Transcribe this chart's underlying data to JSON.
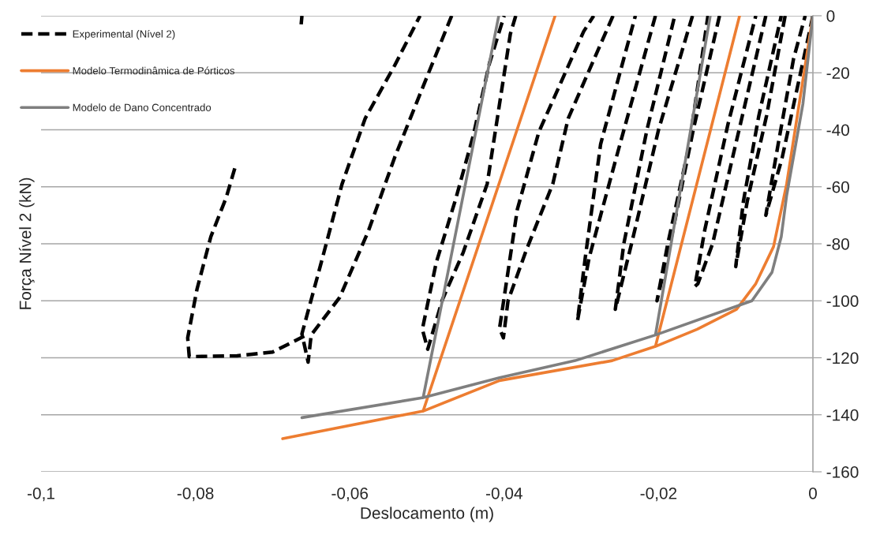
{
  "chart_data": {
    "type": "line",
    "xlabel": "Deslocamento (m)",
    "ylabel": "Força Nível 2 (kN)",
    "xlim": [
      -0.1,
      0
    ],
    "ylim": [
      -160,
      0
    ],
    "xticks": [
      {
        "value": -0.1,
        "label": "-0,1"
      },
      {
        "value": -0.08,
        "label": "-0,08"
      },
      {
        "value": -0.06,
        "label": "-0,06"
      },
      {
        "value": -0.04,
        "label": "-0,04"
      },
      {
        "value": -0.02,
        "label": "-0,02"
      },
      0
    ],
    "yticks": [
      -160,
      -140,
      -120,
      -100,
      -80,
      -60,
      -40,
      -20,
      0
    ],
    "grid": "y",
    "legend": "top left",
    "series": [
      {
        "name": "Experimental (Nível 2)",
        "color": "#000000",
        "line_style": "dashed",
        "x": [
          0,
          -0.002,
          -0.004,
          -0.0061,
          -0.0045,
          -0.0025,
          -0.001,
          null,
          -0.0036,
          -0.006,
          -0.0085,
          -0.01,
          -0.009,
          -0.007,
          -0.0041,
          null,
          -0.0061,
          -0.01,
          -0.013,
          -0.0149,
          -0.0153,
          -0.014,
          -0.011,
          -0.0074,
          null,
          -0.0121,
          -0.0155,
          -0.0185,
          -0.0202,
          -0.0188,
          -0.016,
          -0.0136,
          null,
          -0.0156,
          -0.02,
          -0.0235,
          -0.0256,
          -0.0245,
          -0.0215,
          -0.0179,
          null,
          -0.0204,
          -0.0255,
          -0.029,
          -0.0305,
          -0.0295,
          -0.0275,
          -0.023,
          null,
          -0.0259,
          -0.0317,
          -0.0337,
          -0.0371,
          -0.0395,
          -0.0401,
          -0.0406,
          -0.0383,
          -0.0355,
          -0.0297,
          -0.0284,
          null,
          -0.0385,
          -0.0392,
          -0.0422,
          -0.0453,
          -0.048,
          -0.0499,
          -0.0506,
          -0.0488,
          -0.0463,
          -0.044,
          -0.0419,
          -0.04,
          null,
          -0.0468,
          -0.0508,
          -0.0542,
          -0.0576,
          -0.0613,
          -0.065,
          -0.0654,
          -0.0662,
          -0.0637,
          -0.061,
          -0.058,
          -0.0542,
          -0.0509,
          null,
          -0.0662,
          -0.0663,
          null,
          -0.0659,
          -0.07,
          -0.0746,
          -0.0808,
          -0.081,
          -0.0798,
          -0.078,
          -0.076,
          -0.0748
        ],
        "values": [
          0,
          -25,
          -50,
          -70,
          -45,
          -15,
          0,
          null,
          0,
          -35,
          -65,
          -88,
          -65,
          -35,
          0,
          null,
          0,
          -45,
          -80,
          -94,
          -95,
          -75,
          -38,
          0,
          null,
          0,
          -40,
          -80,
          -100,
          -80,
          -45,
          0,
          null,
          0,
          -40,
          -80,
          -103,
          -80,
          -40,
          0,
          null,
          0,
          -50,
          -85,
          -107,
          -85,
          -45,
          0,
          null,
          0,
          -36,
          -59,
          -82,
          -100,
          -113,
          -109.7,
          -68,
          -40.7,
          -5.5,
          0,
          null,
          0,
          -6.4,
          -59,
          -83,
          -99.6,
          -117,
          -110,
          -86.6,
          -64.5,
          -42,
          -16.6,
          0,
          null,
          0,
          -26.8,
          -49.8,
          -75.6,
          -98.8,
          -112,
          -121.5,
          -111.6,
          -86.6,
          -59,
          -36,
          -17.5,
          0,
          null,
          0,
          -3,
          null,
          -112.4,
          -118,
          -119.3,
          -119.6,
          -113,
          -96,
          -77.5,
          -63.7,
          -52.6
        ]
      },
      {
        "name": "Modelo Termodinâmica de Pórticos",
        "color": "#ed7d31",
        "line_style": "solid",
        "x": [
          0,
          -0.0034,
          -0.0051,
          -0.0074,
          -0.0099,
          -0.015,
          -0.0204,
          -0.0095,
          -0.0204,
          -0.026,
          -0.0406,
          -0.0505,
          -0.0334,
          -0.0505,
          -0.0687
        ],
        "values": [
          0,
          -59,
          -81,
          -94,
          -103,
          -110,
          -116,
          0,
          -116,
          -121,
          -128,
          -138.7,
          0,
          -138.7,
          -148.4
        ]
      },
      {
        "name": "Modelo de Dano Concentrado",
        "color": "#7f7f7f",
        "line_style": "solid",
        "x": [
          0,
          -0.0013,
          -0.0034,
          -0.0041,
          -0.0053,
          -0.0079,
          -0.0204,
          -0.0133,
          -0.0204,
          -0.0308,
          -0.0406,
          -0.0505,
          -0.0407,
          -0.0505,
          -0.0662
        ],
        "values": [
          0,
          -31,
          -63,
          -77.5,
          -90,
          -100,
          -112,
          0,
          -112,
          -121,
          -127,
          -134,
          0,
          -134,
          -141
        ]
      }
    ]
  }
}
